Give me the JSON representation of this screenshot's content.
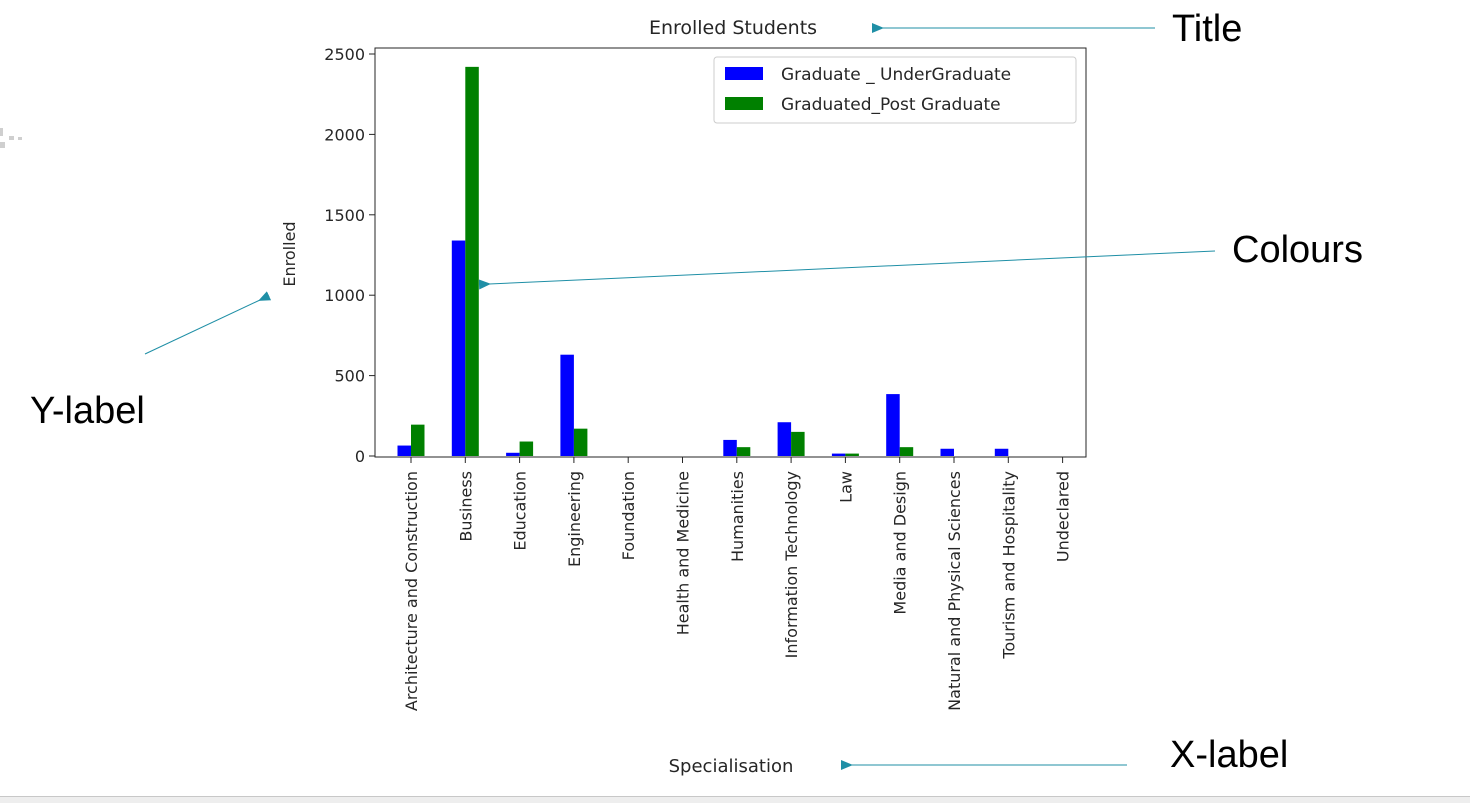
{
  "annotations": {
    "title": "Title",
    "colours": "Colours",
    "ylabel": "Y-label",
    "xlabel": "X-label"
  },
  "colors": {
    "arrow": "#1f8fa6",
    "series_undergrad": "#0000ff",
    "series_postgrad": "#008000"
  },
  "chart_data": {
    "type": "bar",
    "title": "Enrolled Students",
    "xlabel": "Specialisation",
    "ylabel": "Enrolled",
    "ylim": [
      0,
      2500
    ],
    "yticks": [
      0,
      500,
      1000,
      1500,
      2000,
      2500
    ],
    "legend_position": "upper-right",
    "grid": false,
    "categories": [
      "Architecture and Construction",
      "Business",
      "Education",
      "Engineering",
      "Foundation",
      "Health and Medicine",
      "Humanities",
      "Information Technology",
      "Law",
      "Media and Design",
      "Natural and Physical Sciences",
      "Tourism and Hospitality",
      "Undeclared"
    ],
    "series": [
      {
        "name": "Graduate _ UnderGraduate",
        "color": "#0000ff",
        "values": [
          65,
          1340,
          20,
          630,
          0,
          0,
          100,
          210,
          15,
          385,
          45,
          45,
          0
        ]
      },
      {
        "name": "Graduated_Post Graduate",
        "color": "#008000",
        "values": [
          195,
          2420,
          90,
          170,
          0,
          0,
          55,
          150,
          15,
          55,
          0,
          0,
          0
        ]
      }
    ]
  }
}
